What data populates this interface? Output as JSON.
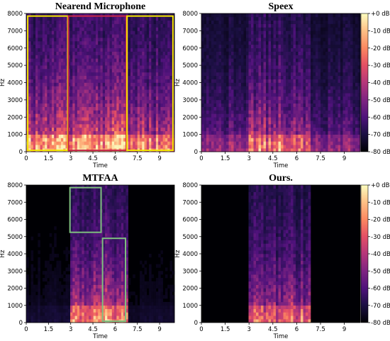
{
  "chart_data": [
    {
      "type": "heatmap",
      "title": "Nearend Microphone",
      "xlabel": "Time",
      "ylabel": "Hz",
      "xlim": [
        0,
        10
      ],
      "ylim": [
        0,
        8000
      ],
      "x_ticks": [
        "0",
        "1.5",
        "3",
        "4.5",
        "6",
        "7.5",
        "9"
      ],
      "x_tick_values": [
        0,
        1.5,
        3,
        4.5,
        6,
        7.5,
        9
      ],
      "y_ticks": [
        "0",
        "1000",
        "2000",
        "3000",
        "4000",
        "5000",
        "6000",
        "7000",
        "8000"
      ],
      "y_tick_values": [
        0,
        1000,
        2000,
        3000,
        4000,
        5000,
        6000,
        7000,
        8000
      ],
      "active_segments": [
        [
          0,
          2.8,
          1.0
        ],
        [
          2.8,
          6.8,
          1.05
        ],
        [
          6.8,
          10,
          0.9
        ]
      ],
      "highlight_boxes": [
        {
          "color": "#f5e500",
          "x": [
            0.1,
            2.8
          ],
          "y": [
            80,
            7850
          ]
        },
        {
          "color": "#c8284a",
          "x": [
            2.85,
            6.75
          ],
          "y": [
            80,
            7850
          ]
        },
        {
          "color": "#f5e500",
          "x": [
            6.8,
            9.9
          ],
          "y": [
            80,
            7850
          ]
        }
      ]
    },
    {
      "type": "heatmap",
      "title": "Speex",
      "xlabel": "Time",
      "ylabel": "Hz",
      "xlim": [
        0,
        10
      ],
      "ylim": [
        0,
        8000
      ],
      "x_ticks": [
        "0",
        "1.5",
        "3",
        "4.5",
        "6",
        "7.5",
        "9"
      ],
      "x_tick_values": [
        0,
        1.5,
        3,
        4.5,
        6,
        7.5,
        9
      ],
      "y_ticks": [
        "0",
        "1000",
        "2000",
        "3000",
        "4000",
        "5000",
        "6000",
        "7000",
        "8000"
      ],
      "y_tick_values": [
        0,
        1000,
        2000,
        3000,
        4000,
        5000,
        6000,
        7000,
        8000
      ],
      "active_segments": [
        [
          0,
          2.9,
          0.55
        ],
        [
          2.9,
          6.8,
          0.85
        ],
        [
          6.8,
          10,
          0.5
        ]
      ],
      "highlight_boxes": []
    },
    {
      "type": "heatmap",
      "title": "MTFAA",
      "xlabel": "Time",
      "ylabel": "Hz",
      "xlim": [
        0,
        10
      ],
      "ylim": [
        0,
        8000
      ],
      "x_ticks": [
        "0",
        "1.5",
        "3",
        "4.5",
        "6",
        "7.5",
        "9"
      ],
      "x_tick_values": [
        0,
        1.5,
        3,
        4.5,
        6,
        7.5,
        9
      ],
      "y_ticks": [
        "0",
        "1000",
        "2000",
        "3000",
        "4000",
        "5000",
        "6000",
        "7000",
        "8000"
      ],
      "y_tick_values": [
        0,
        1000,
        2000,
        3000,
        4000,
        5000,
        6000,
        7000,
        8000
      ],
      "active_segments": [
        [
          0,
          2.9,
          0.12
        ],
        [
          2.9,
          6.9,
          0.95
        ],
        [
          6.9,
          10,
          0.1
        ]
      ],
      "highlight_boxes": [
        {
          "color": "#7fbf7f",
          "x": [
            2.95,
            5.05
          ],
          "y": [
            5250,
            7850
          ]
        },
        {
          "color": "#7fbf7f",
          "x": [
            5.15,
            6.7
          ],
          "y": [
            80,
            4900
          ]
        }
      ]
    },
    {
      "type": "heatmap",
      "title": "Ours.",
      "xlabel": "Time",
      "ylabel": "Hz",
      "xlim": [
        0,
        10
      ],
      "ylim": [
        0,
        8000
      ],
      "x_ticks": [
        "0",
        "1.5",
        "3",
        "4.5",
        "6",
        "7.5",
        "9"
      ],
      "x_tick_values": [
        0,
        1.5,
        3,
        4.5,
        6,
        7.5,
        9
      ],
      "y_ticks": [
        "0",
        "1000",
        "2000",
        "3000",
        "4000",
        "5000",
        "6000",
        "7000",
        "8000"
      ],
      "y_tick_values": [
        0,
        1000,
        2000,
        3000,
        4000,
        5000,
        6000,
        7000,
        8000
      ],
      "active_segments": [
        [
          2.95,
          6.85,
          0.8
        ]
      ],
      "highlight_boxes": []
    }
  ],
  "colorbar": {
    "labels": [
      "+0 dB",
      "-10 dB",
      "-20 dB",
      "-30 dB",
      "-40 dB",
      "-50 dB",
      "-60 dB",
      "-70 dB",
      "-80 dB"
    ],
    "range_db": [
      -80,
      0
    ],
    "colormap": "magma"
  }
}
